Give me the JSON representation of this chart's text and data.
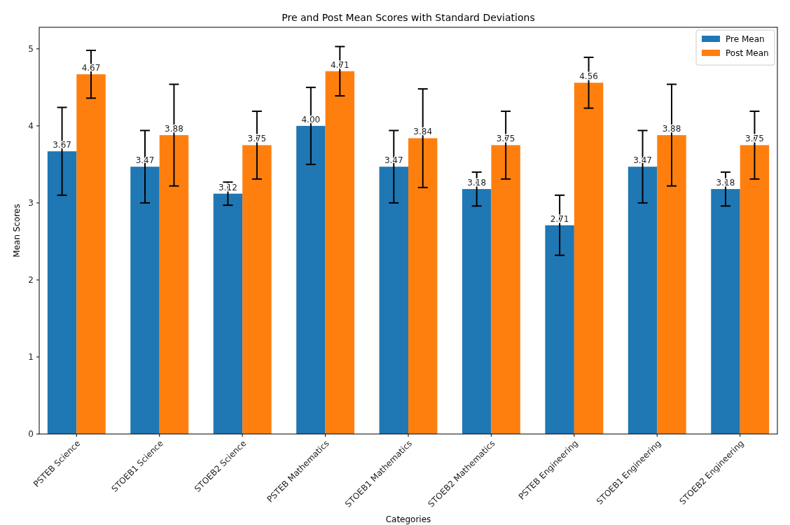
{
  "chart_data": {
    "type": "bar",
    "title": "Pre and Post Mean Scores with Standard Deviations",
    "xlabel": "Categories",
    "ylabel": "Mean Scores",
    "categories": [
      "PSTEB Science",
      "STOEB1 Science",
      "STOEB2 Science",
      "PSTEB Mathematics",
      "STOEB1 Mathematics",
      "STOEB2 Mathematics",
      "PSTEB Engineering",
      "STOEB1 Engineering",
      "STOEB2 Engineering"
    ],
    "series": [
      {
        "name": "Pre Mean",
        "color": "#1f77b4",
        "values": [
          3.67,
          3.47,
          3.12,
          4.0,
          3.47,
          3.18,
          2.71,
          3.47,
          3.18
        ],
        "errors": [
          0.57,
          0.47,
          0.15,
          0.5,
          0.47,
          0.22,
          0.39,
          0.47,
          0.22
        ],
        "value_labels": [
          "3.67",
          "3.47",
          "3.12",
          "4.00",
          "3.47",
          "3.18",
          "2.71",
          "3.47",
          "3.18"
        ]
      },
      {
        "name": "Post Mean",
        "color": "#ff7f0e",
        "values": [
          4.67,
          3.88,
          3.75,
          4.71,
          3.84,
          3.75,
          4.56,
          3.88,
          3.75
        ],
        "errors": [
          0.31,
          0.66,
          0.44,
          0.32,
          0.64,
          0.44,
          0.33,
          0.66,
          0.44
        ],
        "value_labels": [
          "4.67",
          "3.88",
          "3.75",
          "4.71",
          "3.84",
          "3.75",
          "4.56",
          "3.88",
          "3.75"
        ]
      }
    ],
    "ylim": [
      0,
      5.28
    ],
    "yticks": [
      0,
      1,
      2,
      3,
      4,
      5
    ],
    "legend": "top right"
  }
}
